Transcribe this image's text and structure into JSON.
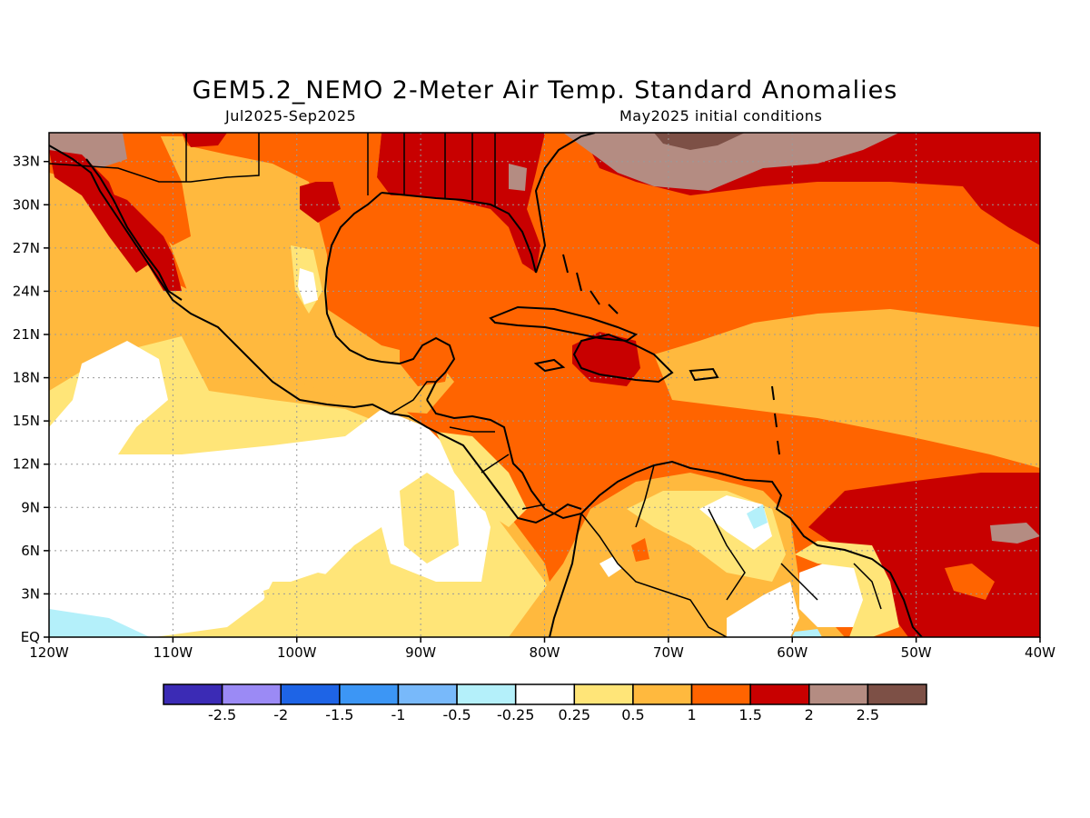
{
  "header": {
    "title": "GEM5.2_NEMO 2-Meter Air Temp. Standard Anomalies",
    "period": "Jul2025-Sep2025",
    "init": "May2025 initial conditions"
  },
  "map": {
    "lon_range": [
      -120,
      -40
    ],
    "lat_range": [
      0,
      35
    ],
    "lon_ticks": [
      {
        "value": -120,
        "label": "120W"
      },
      {
        "value": -110,
        "label": "110W"
      },
      {
        "value": -100,
        "label": "100W"
      },
      {
        "value": -90,
        "label": "90W"
      },
      {
        "value": -80,
        "label": "80W"
      },
      {
        "value": -70,
        "label": "70W"
      },
      {
        "value": -60,
        "label": "60W"
      },
      {
        "value": -50,
        "label": "50W"
      },
      {
        "value": -40,
        "label": "40W"
      }
    ],
    "lat_ticks": [
      {
        "value": 0,
        "label": "EQ"
      },
      {
        "value": 3,
        "label": "3N"
      },
      {
        "value": 6,
        "label": "6N"
      },
      {
        "value": 9,
        "label": "9N"
      },
      {
        "value": 12,
        "label": "12N"
      },
      {
        "value": 15,
        "label": "15N"
      },
      {
        "value": 18,
        "label": "18N"
      },
      {
        "value": 21,
        "label": "21N"
      },
      {
        "value": 24,
        "label": "24N"
      },
      {
        "value": 27,
        "label": "27N"
      },
      {
        "value": 30,
        "label": "30N"
      },
      {
        "value": 33,
        "label": "33N"
      }
    ],
    "grid": true
  },
  "colorbar": {
    "colors": [
      "#3b2bb5",
      "#9b8af5",
      "#1e64e6",
      "#3c96f5",
      "#78b9fa",
      "#b4f0fa",
      "#ffffff",
      "#ffe578",
      "#ffb93e",
      "#ff6400",
      "#c80000",
      "#b48c82",
      "#7d5046"
    ],
    "labels": [
      "-2.5",
      "-2",
      "-1.5",
      "-1",
      "-0.5",
      "-0.25",
      "0.25",
      "0.5",
      "1",
      "1.5",
      "2",
      "2.5"
    ]
  },
  "fill_colors": {
    "white": "#ffffff",
    "light_yellow": "#ffe578",
    "orange_light": "#ffb93e",
    "orange": "#ff6400",
    "red": "#c80000",
    "brown_light": "#b48c82",
    "brown_dark": "#7d5046",
    "cyan": "#b4f0fa",
    "sky": "#78b9fa"
  }
}
